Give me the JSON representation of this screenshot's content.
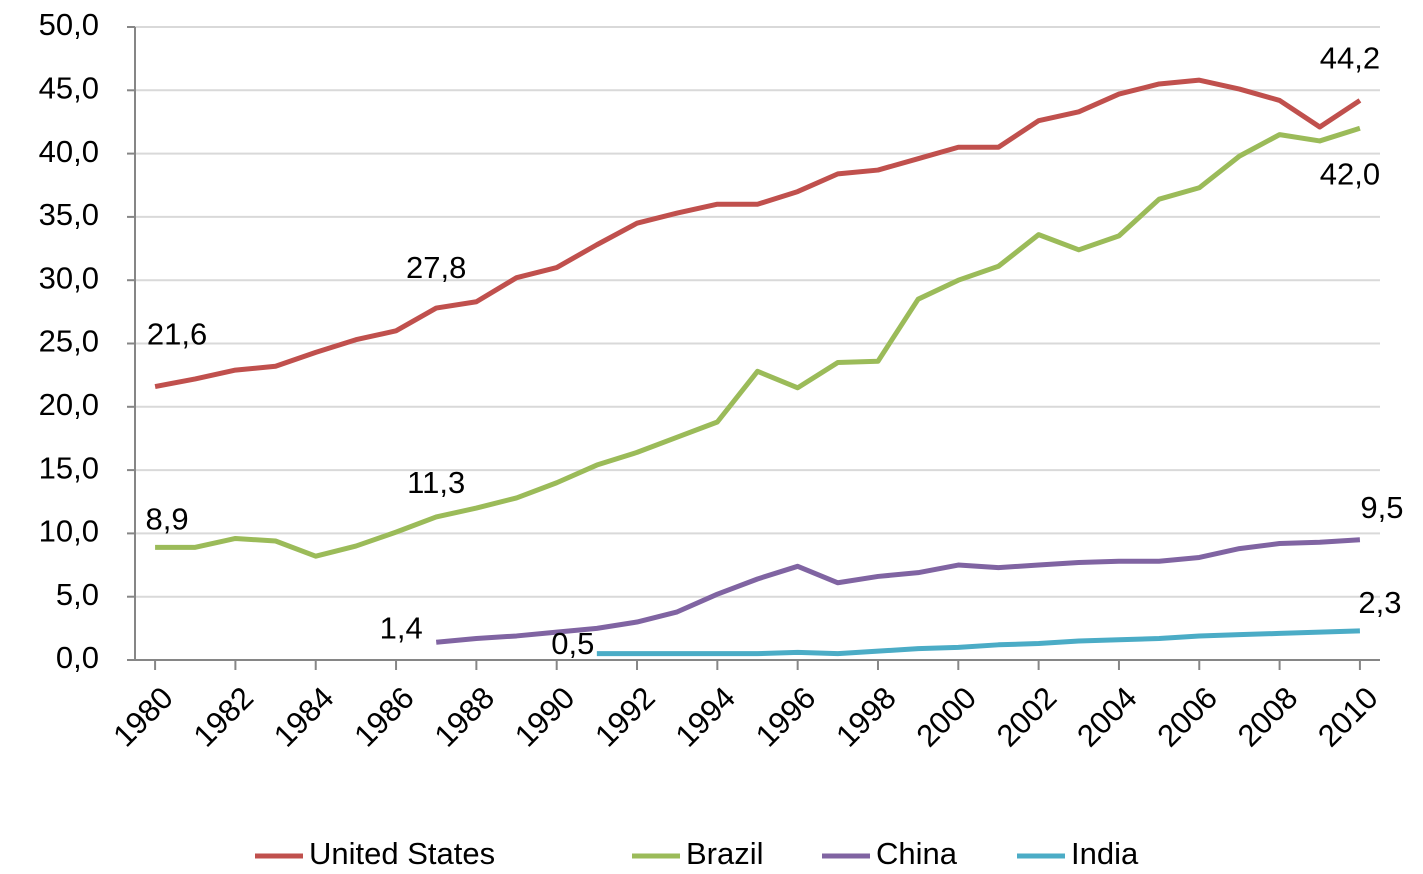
{
  "chart_data": {
    "type": "line",
    "x": [
      1980,
      1981,
      1982,
      1983,
      1984,
      1985,
      1986,
      1987,
      1988,
      1989,
      1990,
      1991,
      1992,
      1993,
      1994,
      1995,
      1996,
      1997,
      1998,
      1999,
      2000,
      2001,
      2002,
      2003,
      2004,
      2005,
      2006,
      2007,
      2008,
      2009,
      2010
    ],
    "xlim": [
      1979.5,
      2010.5
    ],
    "xticks": [
      1980,
      1982,
      1984,
      1986,
      1988,
      1990,
      1992,
      1994,
      1996,
      1998,
      2000,
      2002,
      2004,
      2006,
      2008,
      2010
    ],
    "ylim": [
      0,
      50
    ],
    "yticks": [
      {
        "value": 0,
        "label": "0,0"
      },
      {
        "value": 5,
        "label": "5,0"
      },
      {
        "value": 10,
        "label": "10,0"
      },
      {
        "value": 15,
        "label": "15,0"
      },
      {
        "value": 20,
        "label": "20,0"
      },
      {
        "value": 25,
        "label": "25,0"
      },
      {
        "value": 30,
        "label": "30,0"
      },
      {
        "value": 35,
        "label": "35,0"
      },
      {
        "value": 40,
        "label": "40,0"
      },
      {
        "value": 45,
        "label": "45,0"
      },
      {
        "value": 50,
        "label": "50,0"
      }
    ],
    "grid": true,
    "legend": "bottom",
    "series": [
      {
        "name": "United States",
        "color": "#c0504d",
        "values": [
          21.6,
          22.2,
          22.9,
          23.2,
          24.3,
          25.3,
          26.0,
          27.8,
          28.3,
          30.2,
          31.0,
          32.8,
          34.5,
          35.3,
          36.0,
          36.0,
          37.0,
          38.4,
          38.7,
          39.6,
          40.5,
          40.5,
          42.6,
          43.3,
          44.7,
          45.5,
          45.8,
          45.1,
          44.2,
          42.1,
          44.2
        ],
        "value_labels": [
          "21,6",
          null,
          null,
          null,
          null,
          null,
          null,
          "27,8",
          null,
          null,
          null,
          null,
          null,
          null,
          null,
          null,
          null,
          null,
          null,
          null,
          null,
          null,
          null,
          null,
          null,
          null,
          null,
          null,
          null,
          null,
          "44,2"
        ]
      },
      {
        "name": "Brazil",
        "color": "#9bbb59",
        "values": [
          8.9,
          8.9,
          9.6,
          9.4,
          8.2,
          9.0,
          10.1,
          11.3,
          12.0,
          12.8,
          14.0,
          15.4,
          16.4,
          17.6,
          18.8,
          22.8,
          21.5,
          23.5,
          23.6,
          28.5,
          30.0,
          31.1,
          33.6,
          32.4,
          33.5,
          36.4,
          37.3,
          39.8,
          41.5,
          41.0,
          42.0
        ],
        "value_labels": [
          "8,9",
          null,
          null,
          null,
          null,
          null,
          null,
          "11,3",
          null,
          null,
          null,
          null,
          null,
          null,
          null,
          null,
          null,
          null,
          null,
          null,
          null,
          null,
          null,
          null,
          null,
          null,
          null,
          null,
          null,
          null,
          "42,0"
        ]
      },
      {
        "name": "China",
        "color": "#8064a2",
        "values": [
          null,
          null,
          null,
          null,
          null,
          null,
          null,
          1.4,
          1.7,
          1.9,
          2.2,
          2.5,
          3.0,
          3.8,
          5.2,
          6.4,
          7.4,
          6.1,
          6.6,
          6.9,
          7.5,
          7.3,
          7.5,
          7.7,
          7.8,
          7.8,
          8.1,
          8.8,
          9.2,
          9.3,
          9.5
        ],
        "value_labels": [
          null,
          null,
          null,
          null,
          null,
          null,
          null,
          "1,4",
          null,
          null,
          null,
          null,
          null,
          null,
          null,
          null,
          null,
          null,
          null,
          null,
          null,
          null,
          null,
          null,
          null,
          null,
          null,
          null,
          null,
          null,
          "9,5"
        ]
      },
      {
        "name": "India",
        "color": "#4bacc6",
        "values": [
          null,
          null,
          null,
          null,
          null,
          null,
          null,
          null,
          null,
          null,
          null,
          0.5,
          0.5,
          0.5,
          0.5,
          0.5,
          0.6,
          0.5,
          0.7,
          0.9,
          1.0,
          1.2,
          1.3,
          1.5,
          1.6,
          1.7,
          1.9,
          2.0,
          2.1,
          2.2,
          2.3
        ],
        "value_labels": [
          null,
          null,
          null,
          null,
          null,
          null,
          null,
          null,
          null,
          null,
          null,
          "0,5",
          null,
          null,
          null,
          null,
          null,
          null,
          null,
          null,
          null,
          null,
          null,
          null,
          null,
          null,
          null,
          null,
          null,
          null,
          "2,3"
        ]
      }
    ]
  }
}
